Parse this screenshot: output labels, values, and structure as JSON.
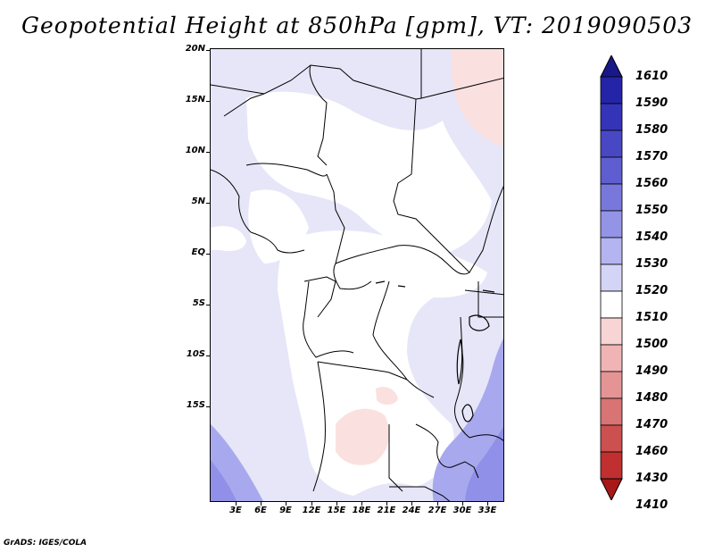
{
  "title": "Geopotential Height at 850hPa [gpm], VT: 2019090503",
  "footer": "GrADS: IGES/COLA",
  "lat_labels": [
    "20N",
    "15N",
    "10N",
    "5N",
    "EQ",
    "5S",
    "10S",
    "15S"
  ],
  "lon_labels": [
    "3E",
    "6E",
    "9E",
    "12E",
    "15E",
    "18E",
    "21E",
    "24E",
    "27E",
    "30E",
    "33E"
  ],
  "colorbar": {
    "levels": [
      "1610",
      "1590",
      "1580",
      "1570",
      "1560",
      "1550",
      "1540",
      "1530",
      "1520",
      "1510",
      "1500",
      "1490",
      "1480",
      "1470",
      "1460",
      "1430",
      "1410"
    ],
    "colors": [
      "#18188a",
      "#2424a8",
      "#3434b8",
      "#4848c4",
      "#5e5ed0",
      "#7878dc",
      "#9494e6",
      "#b4b4f0",
      "#d4d4f6",
      "#ffffff",
      "#f8d4d4",
      "#f0b4b4",
      "#e49494",
      "#d87474",
      "#cc5050",
      "#c03030",
      "#a81818"
    ]
  },
  "colors": {
    "base": "#e6e6f8",
    "neutral": "#ffffff",
    "light_pink": "#fbe0e0",
    "light_blue": "#c8c8f2",
    "medium_blue": "#a8a8ee",
    "deep_blue": "#9090e8"
  }
}
